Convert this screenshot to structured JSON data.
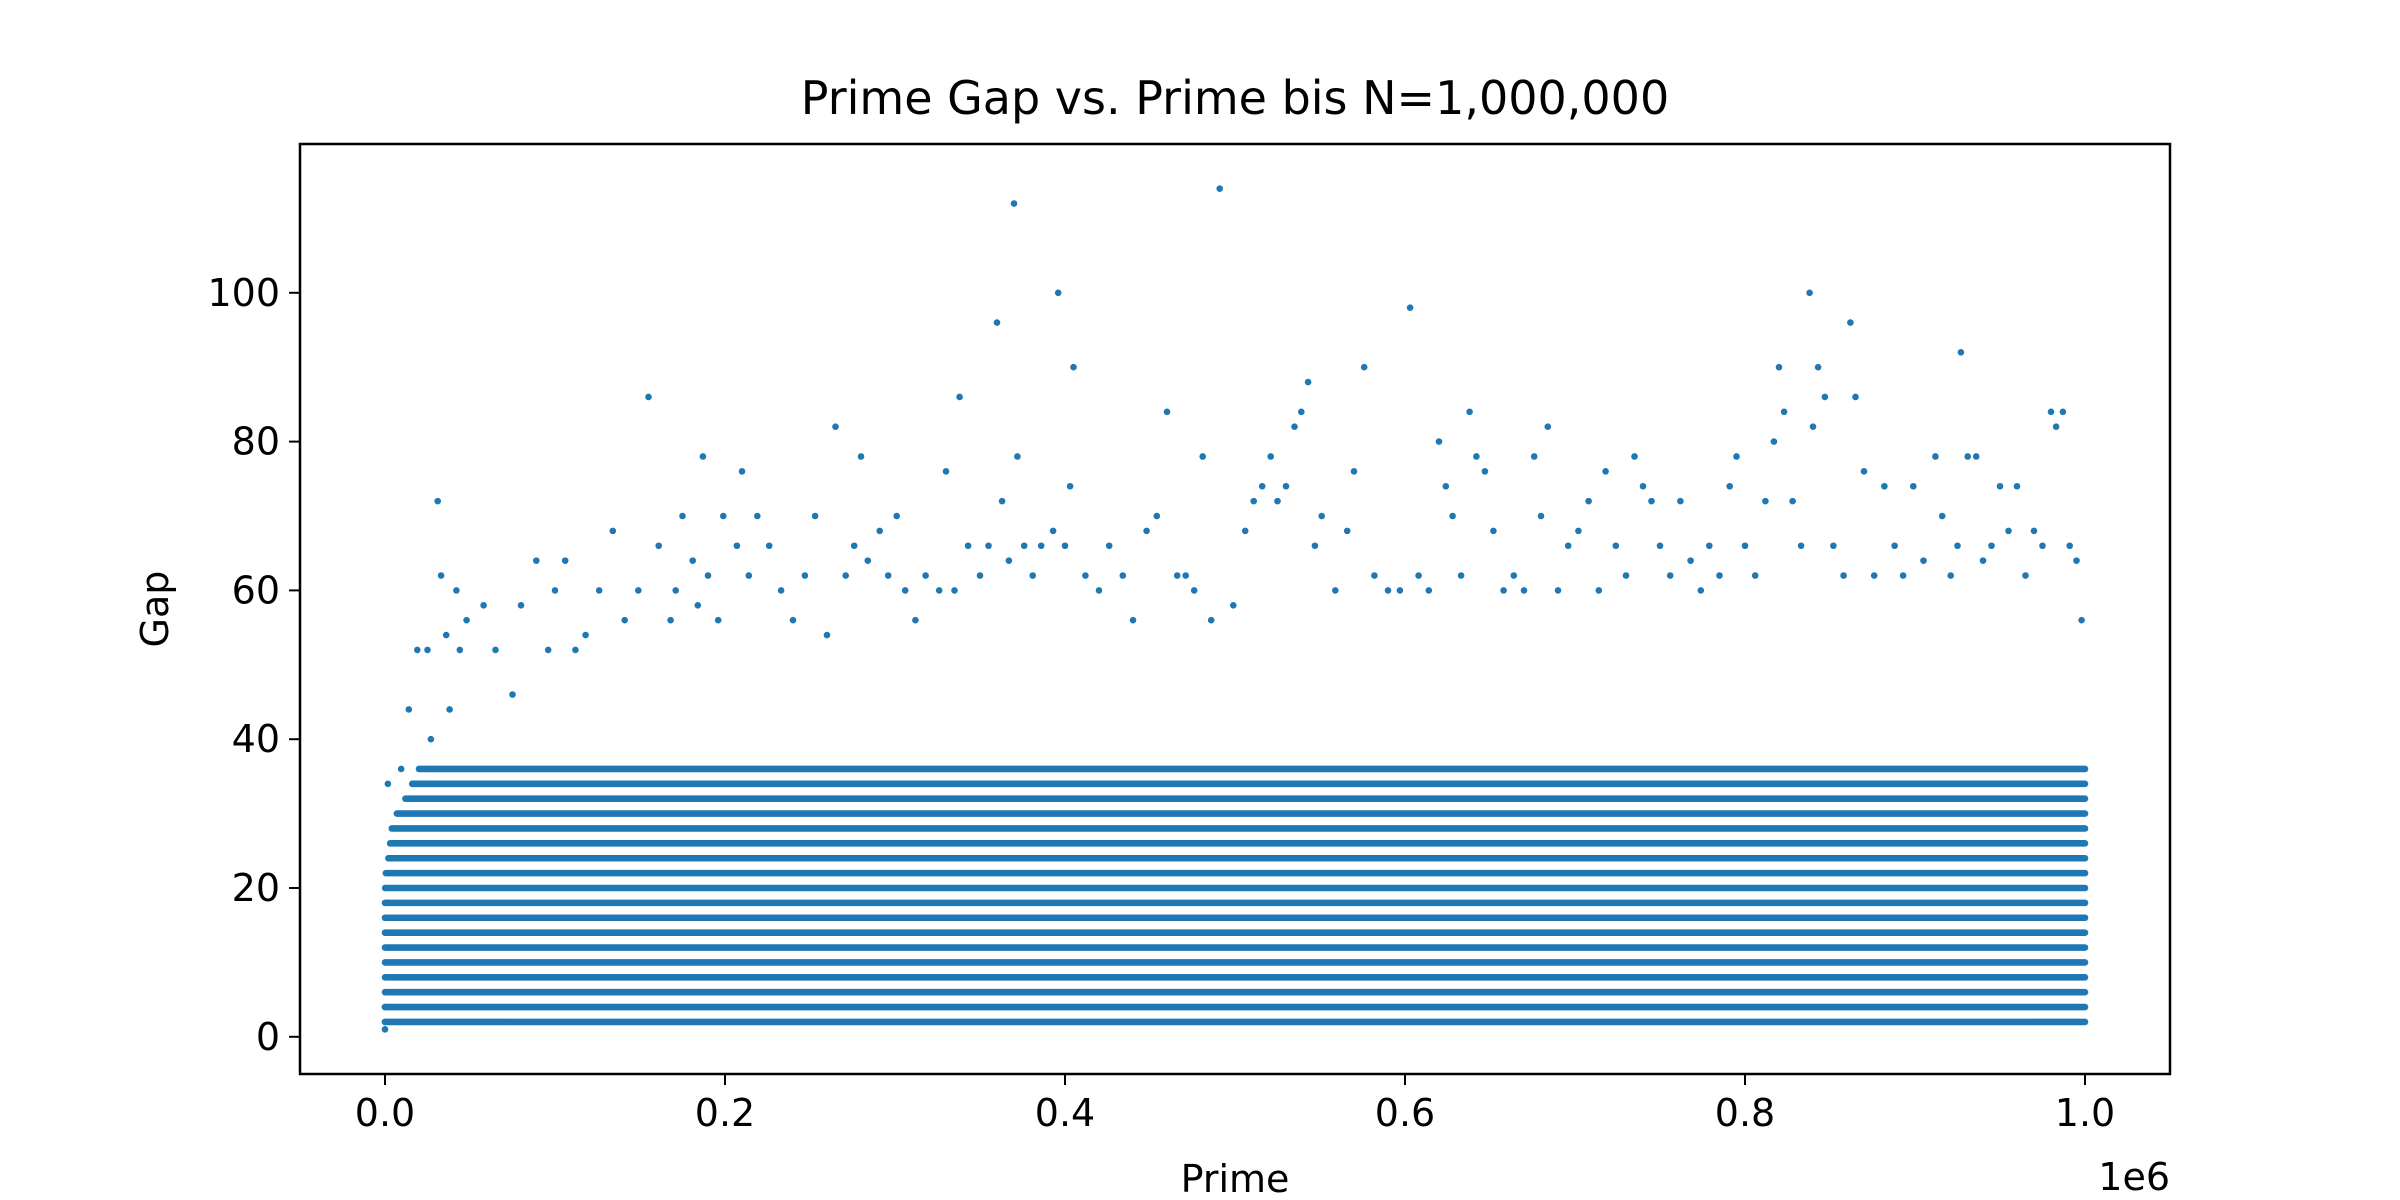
{
  "chart_data": {
    "type": "scatter",
    "title": "Prime Gap vs. Prime bis N=1,000,000",
    "xlabel": "Prime",
    "ylabel": "Gap",
    "x_offset_label": "1e6",
    "xlim": [
      -50000,
      1050000
    ],
    "ylim": [
      -5,
      120
    ],
    "x_ticks": [
      0,
      200000,
      400000,
      600000,
      800000,
      1000000
    ],
    "x_tick_labels": [
      "0.0",
      "0.2",
      "0.4",
      "0.6",
      "0.8",
      "1.0"
    ],
    "y_ticks": [
      0,
      20,
      40,
      60,
      80,
      100
    ],
    "y_tick_labels": [
      "0",
      "20",
      "40",
      "60",
      "80",
      "100"
    ],
    "grid": false,
    "legend": "none",
    "marker_color": "#1f77b4",
    "bands": [
      {
        "gap": 2,
        "x_start": 0,
        "x_end": 1000000
      },
      {
        "gap": 4,
        "x_start": 0,
        "x_end": 1000000
      },
      {
        "gap": 6,
        "x_start": 0,
        "x_end": 1000000
      },
      {
        "gap": 8,
        "x_start": 0,
        "x_end": 1000000
      },
      {
        "gap": 10,
        "x_start": 0,
        "x_end": 1000000
      },
      {
        "gap": 12,
        "x_start": 0,
        "x_end": 1000000
      },
      {
        "gap": 14,
        "x_start": 0,
        "x_end": 1000000
      },
      {
        "gap": 16,
        "x_start": 0,
        "x_end": 1000000
      },
      {
        "gap": 18,
        "x_start": 0,
        "x_end": 1000000
      },
      {
        "gap": 20,
        "x_start": 100,
        "x_end": 1000000
      },
      {
        "gap": 22,
        "x_start": 500,
        "x_end": 1000000
      },
      {
        "gap": 24,
        "x_start": 2000,
        "x_end": 1000000
      },
      {
        "gap": 26,
        "x_start": 3000,
        "x_end": 1000000
      },
      {
        "gap": 28,
        "x_start": 4000,
        "x_end": 1000000
      },
      {
        "gap": 30,
        "x_start": 7000,
        "x_end": 1000000
      },
      {
        "gap": 32,
        "x_start": 12000,
        "x_end": 1000000
      },
      {
        "gap": 34,
        "x_start": 16000,
        "x_end": 1000000
      },
      {
        "gap": 36,
        "x_start": 20000,
        "x_end": 1000000
      }
    ],
    "points": [
      [
        1,
        1
      ],
      [
        3,
        2
      ],
      [
        7,
        4
      ],
      [
        200,
        14
      ],
      [
        1300,
        18
      ],
      [
        1700,
        34
      ],
      [
        9500,
        36
      ],
      [
        14000,
        44
      ],
      [
        19000,
        52
      ],
      [
        25000,
        52
      ],
      [
        27000,
        40
      ],
      [
        31000,
        72
      ],
      [
        33000,
        62
      ],
      [
        36000,
        54
      ],
      [
        38000,
        44
      ],
      [
        42000,
        60
      ],
      [
        44000,
        52
      ],
      [
        48000,
        56
      ],
      [
        58000,
        58
      ],
      [
        65000,
        52
      ],
      [
        75000,
        46
      ],
      [
        80000,
        58
      ],
      [
        89000,
        64
      ],
      [
        96000,
        52
      ],
      [
        100000,
        60
      ],
      [
        106000,
        64
      ],
      [
        112000,
        52
      ],
      [
        118000,
        54
      ],
      [
        126000,
        60
      ],
      [
        134000,
        68
      ],
      [
        141000,
        56
      ],
      [
        149000,
        60
      ],
      [
        155000,
        86
      ],
      [
        161000,
        66
      ],
      [
        168000,
        56
      ],
      [
        171000,
        60
      ],
      [
        175000,
        70
      ],
      [
        181000,
        64
      ],
      [
        184000,
        58
      ],
      [
        187000,
        78
      ],
      [
        190000,
        62
      ],
      [
        196000,
        56
      ],
      [
        199000,
        70
      ],
      [
        207000,
        66
      ],
      [
        210000,
        76
      ],
      [
        214000,
        62
      ],
      [
        219000,
        70
      ],
      [
        226000,
        66
      ],
      [
        233000,
        60
      ],
      [
        240000,
        56
      ],
      [
        247000,
        62
      ],
      [
        253000,
        70
      ],
      [
        260000,
        54
      ],
      [
        265000,
        82
      ],
      [
        271000,
        62
      ],
      [
        276000,
        66
      ],
      [
        280000,
        78
      ],
      [
        284000,
        64
      ],
      [
        291000,
        68
      ],
      [
        296000,
        62
      ],
      [
        301000,
        70
      ],
      [
        306000,
        60
      ],
      [
        312000,
        56
      ],
      [
        318000,
        62
      ],
      [
        326000,
        60
      ],
      [
        330000,
        76
      ],
      [
        335000,
        60
      ],
      [
        338000,
        86
      ],
      [
        343000,
        66
      ],
      [
        350000,
        62
      ],
      [
        355000,
        66
      ],
      [
        360000,
        96
      ],
      [
        363000,
        72
      ],
      [
        367000,
        64
      ],
      [
        370000,
        112
      ],
      [
        372000,
        78
      ],
      [
        376000,
        66
      ],
      [
        381000,
        62
      ],
      [
        386000,
        66
      ],
      [
        393000,
        68
      ],
      [
        396000,
        100
      ],
      [
        400000,
        66
      ],
      [
        403000,
        74
      ],
      [
        405000,
        90
      ],
      [
        412000,
        62
      ],
      [
        420000,
        60
      ],
      [
        426000,
        66
      ],
      [
        434000,
        62
      ],
      [
        440000,
        56
      ],
      [
        448000,
        68
      ],
      [
        454000,
        70
      ],
      [
        460000,
        84
      ],
      [
        466000,
        62
      ],
      [
        471000,
        62
      ],
      [
        476000,
        60
      ],
      [
        481000,
        78
      ],
      [
        486000,
        56
      ],
      [
        491000,
        114
      ],
      [
        499000,
        58
      ],
      [
        506000,
        68
      ],
      [
        511000,
        72
      ],
      [
        516000,
        74
      ],
      [
        521000,
        78
      ],
      [
        525000,
        72
      ],
      [
        530000,
        74
      ],
      [
        535000,
        82
      ],
      [
        539000,
        84
      ],
      [
        543000,
        88
      ],
      [
        547000,
        66
      ],
      [
        551000,
        70
      ],
      [
        559000,
        60
      ],
      [
        566000,
        68
      ],
      [
        570000,
        76
      ],
      [
        576000,
        90
      ],
      [
        582000,
        62
      ],
      [
        590000,
        60
      ],
      [
        597000,
        60
      ],
      [
        603000,
        98
      ],
      [
        608000,
        62
      ],
      [
        614000,
        60
      ],
      [
        620000,
        80
      ],
      [
        624000,
        74
      ],
      [
        628000,
        70
      ],
      [
        633000,
        62
      ],
      [
        638000,
        84
      ],
      [
        642000,
        78
      ],
      [
        647000,
        76
      ],
      [
        652000,
        68
      ],
      [
        658000,
        60
      ],
      [
        664000,
        62
      ],
      [
        670000,
        60
      ],
      [
        676000,
        78
      ],
      [
        680000,
        70
      ],
      [
        684000,
        82
      ],
      [
        690000,
        60
      ],
      [
        696000,
        66
      ],
      [
        702000,
        68
      ],
      [
        708000,
        72
      ],
      [
        714000,
        60
      ],
      [
        718000,
        76
      ],
      [
        724000,
        66
      ],
      [
        730000,
        62
      ],
      [
        735000,
        78
      ],
      [
        740000,
        74
      ],
      [
        745000,
        72
      ],
      [
        750000,
        66
      ],
      [
        756000,
        62
      ],
      [
        762000,
        72
      ],
      [
        768000,
        64
      ],
      [
        774000,
        60
      ],
      [
        779000,
        66
      ],
      [
        785000,
        62
      ],
      [
        791000,
        74
      ],
      [
        795000,
        78
      ],
      [
        800000,
        66
      ],
      [
        806000,
        62
      ],
      [
        812000,
        72
      ],
      [
        817000,
        80
      ],
      [
        820000,
        90
      ],
      [
        823000,
        84
      ],
      [
        828000,
        72
      ],
      [
        833000,
        66
      ],
      [
        838000,
        100
      ],
      [
        840000,
        82
      ],
      [
        843000,
        90
      ],
      [
        847000,
        86
      ],
      [
        852000,
        66
      ],
      [
        858000,
        62
      ],
      [
        862000,
        96
      ],
      [
        865000,
        86
      ],
      [
        870000,
        76
      ],
      [
        876000,
        62
      ],
      [
        882000,
        74
      ],
      [
        888000,
        66
      ],
      [
        893000,
        62
      ],
      [
        899000,
        74
      ],
      [
        905000,
        64
      ],
      [
        912000,
        78
      ],
      [
        916000,
        70
      ],
      [
        921000,
        62
      ],
      [
        925000,
        66
      ],
      [
        927000,
        92
      ],
      [
        931000,
        78
      ],
      [
        936000,
        78
      ],
      [
        940000,
        64
      ],
      [
        945000,
        66
      ],
      [
        950000,
        74
      ],
      [
        955000,
        68
      ],
      [
        960000,
        74
      ],
      [
        965000,
        62
      ],
      [
        970000,
        68
      ],
      [
        975000,
        66
      ],
      [
        980000,
        84
      ],
      [
        983000,
        82
      ],
      [
        987000,
        84
      ],
      [
        991000,
        66
      ],
      [
        995000,
        64
      ],
      [
        998000,
        56
      ]
    ]
  }
}
